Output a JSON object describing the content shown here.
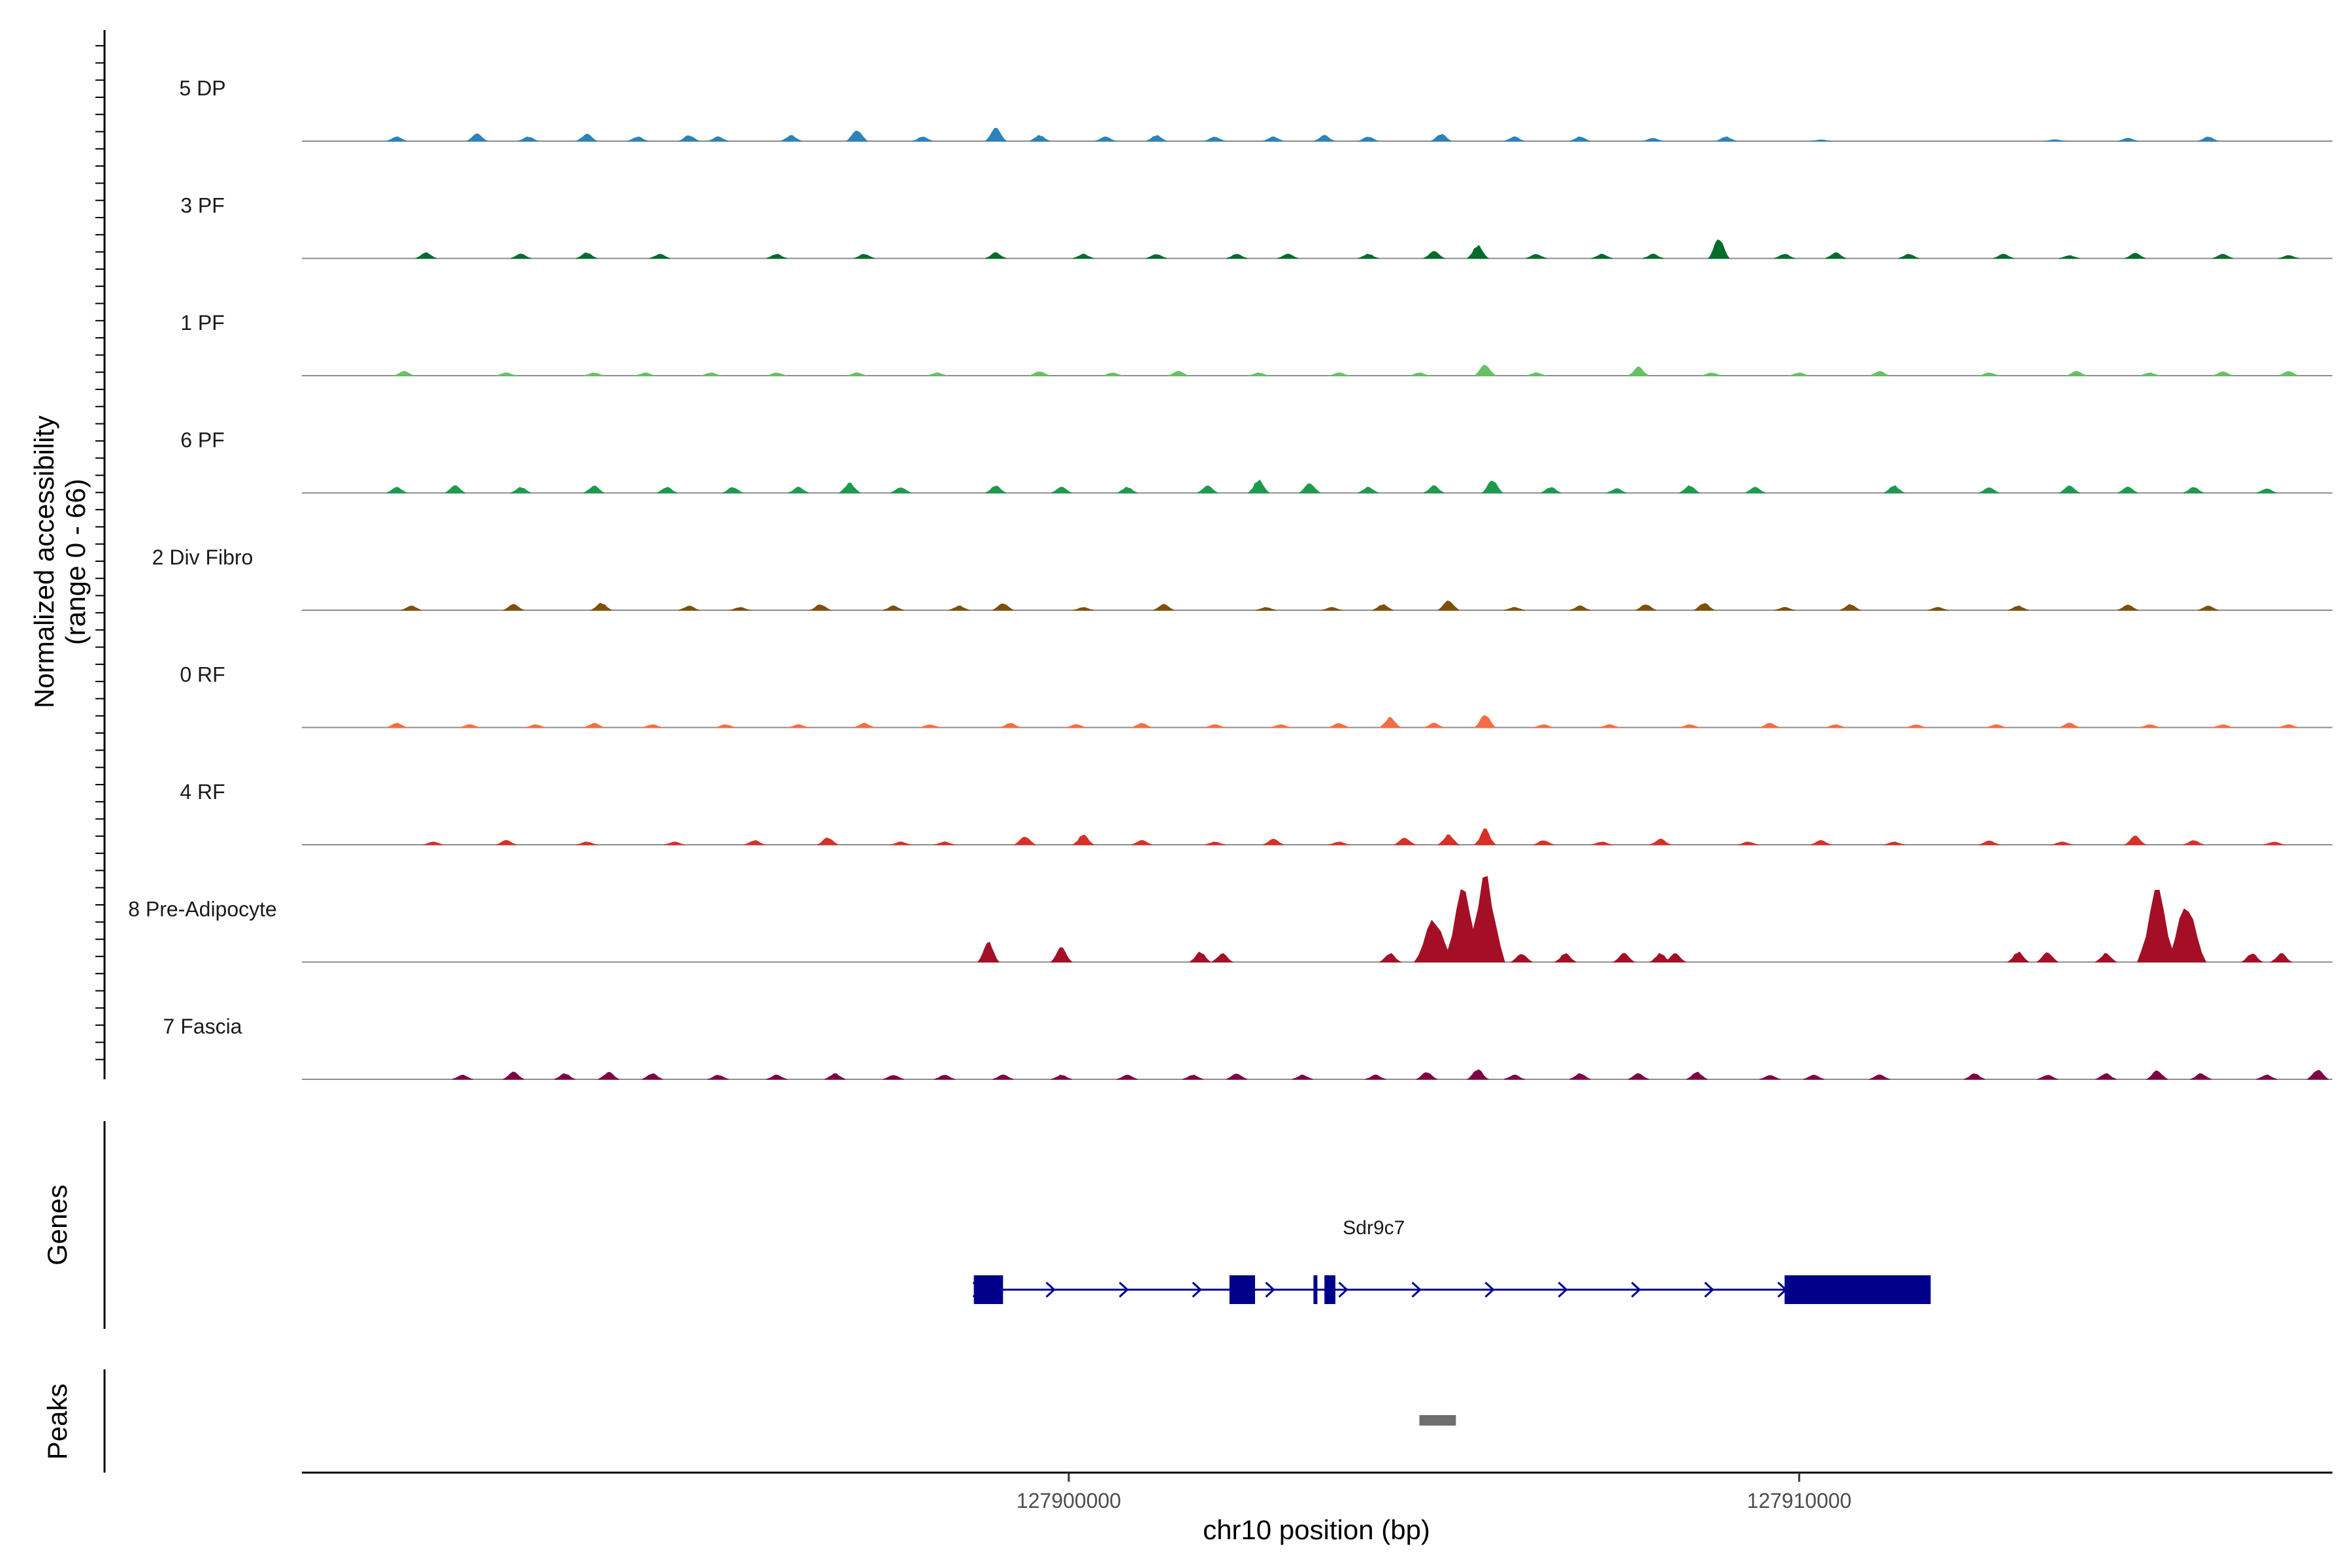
{
  "chart_data": {
    "type": "area",
    "region": {
      "chromosome": "chr10",
      "start": 127889500,
      "end": 127917300
    },
    "ylabel_line1": "Normalized accessibility",
    "ylabel_line2": "(range 0 - 66)",
    "y_range": [
      0,
      66
    ],
    "genes_label": "Genes",
    "peaks_label": "Peaks",
    "xlabel": "chr10 position (bp)",
    "x_ticks": [
      {
        "value": 127900000,
        "label": "127900000"
      },
      {
        "value": 127910000,
        "label": "127910000"
      }
    ],
    "series": [
      {
        "name": "5 DP",
        "color": "#2b83ba",
        "peaks": [
          [
            127890800,
            3
          ],
          [
            127891900,
            5
          ],
          [
            127892600,
            3
          ],
          [
            127893400,
            5
          ],
          [
            127894100,
            3
          ],
          [
            127894800,
            4
          ],
          [
            127895200,
            3
          ],
          [
            127896200,
            4
          ],
          [
            127897100,
            8
          ],
          [
            127898000,
            3
          ],
          [
            127899000,
            9
          ],
          [
            127899600,
            4
          ],
          [
            127900500,
            3
          ],
          [
            127901200,
            4
          ],
          [
            127902000,
            3
          ],
          [
            127902800,
            3
          ],
          [
            127903500,
            4
          ],
          [
            127904100,
            3
          ],
          [
            127905100,
            5
          ],
          [
            127906100,
            3
          ],
          [
            127907000,
            3
          ],
          [
            127908000,
            2
          ],
          [
            127909000,
            3
          ],
          [
            127910300,
            1
          ],
          [
            127913500,
            1
          ],
          [
            127914500,
            2
          ],
          [
            127915600,
            3
          ]
        ]
      },
      {
        "name": "3 PF",
        "color": "#006d2c",
        "peaks": [
          [
            127891200,
            4
          ],
          [
            127892500,
            3
          ],
          [
            127893400,
            4
          ],
          [
            127894400,
            3
          ],
          [
            127896000,
            3
          ],
          [
            127897200,
            3
          ],
          [
            127899000,
            4
          ],
          [
            127900200,
            3
          ],
          [
            127901200,
            3
          ],
          [
            127902300,
            3
          ],
          [
            127903000,
            3
          ],
          [
            127904100,
            3
          ],
          [
            127905000,
            5
          ],
          [
            127905600,
            9
          ],
          [
            127906400,
            3
          ],
          [
            127907300,
            3
          ],
          [
            127908000,
            3
          ],
          [
            127908900,
            14
          ],
          [
            127909800,
            3
          ],
          [
            127910500,
            4
          ],
          [
            127911500,
            3
          ],
          [
            127912800,
            3
          ],
          [
            127913700,
            2
          ],
          [
            127914600,
            4
          ],
          [
            127915800,
            3
          ],
          [
            127916700,
            2
          ]
        ]
      },
      {
        "name": "1 PF",
        "color": "#66c164",
        "peaks": [
          [
            127890900,
            3
          ],
          [
            127892300,
            2
          ],
          [
            127893500,
            2
          ],
          [
            127894200,
            2
          ],
          [
            127895100,
            2
          ],
          [
            127896000,
            2
          ],
          [
            127897100,
            2
          ],
          [
            127898200,
            2
          ],
          [
            127899600,
            3
          ],
          [
            127900600,
            2
          ],
          [
            127901500,
            3
          ],
          [
            127902600,
            2
          ],
          [
            127903700,
            2
          ],
          [
            127904800,
            2
          ],
          [
            127905700,
            8
          ],
          [
            127906400,
            2
          ],
          [
            127907800,
            6
          ],
          [
            127908800,
            2
          ],
          [
            127910000,
            2
          ],
          [
            127911100,
            3
          ],
          [
            127912600,
            2
          ],
          [
            127913800,
            3
          ],
          [
            127914800,
            2
          ],
          [
            127915800,
            3
          ],
          [
            127916700,
            3
          ]
        ]
      },
      {
        "name": "6 PF",
        "color": "#1e9a4f",
        "peaks": [
          [
            127890800,
            4
          ],
          [
            127891600,
            5
          ],
          [
            127892500,
            4
          ],
          [
            127893500,
            5
          ],
          [
            127894500,
            4
          ],
          [
            127895400,
            4
          ],
          [
            127896300,
            4
          ],
          [
            127897000,
            7
          ],
          [
            127897700,
            4
          ],
          [
            127899000,
            5
          ],
          [
            127899900,
            4
          ],
          [
            127900800,
            4
          ],
          [
            127901900,
            5
          ],
          [
            127902600,
            9
          ],
          [
            127903300,
            7
          ],
          [
            127904100,
            4
          ],
          [
            127905000,
            5
          ],
          [
            127905800,
            9
          ],
          [
            127906600,
            4
          ],
          [
            127907500,
            3
          ],
          [
            127908500,
            5
          ],
          [
            127909400,
            4
          ],
          [
            127911300,
            5
          ],
          [
            127912600,
            4
          ],
          [
            127913700,
            5
          ],
          [
            127914500,
            4
          ],
          [
            127915400,
            4
          ],
          [
            127916400,
            3
          ]
        ]
      },
      {
        "name": "2 Div Fibro",
        "color": "#7f4f08",
        "peaks": [
          [
            127891000,
            3
          ],
          [
            127892400,
            4
          ],
          [
            127893600,
            5
          ],
          [
            127894800,
            3
          ],
          [
            127895500,
            2
          ],
          [
            127896600,
            4
          ],
          [
            127897600,
            3
          ],
          [
            127898500,
            3
          ],
          [
            127899100,
            5
          ],
          [
            127900200,
            2
          ],
          [
            127901300,
            4
          ],
          [
            127902700,
            2
          ],
          [
            127903600,
            2
          ],
          [
            127904300,
            4
          ],
          [
            127905200,
            7
          ],
          [
            127906100,
            2
          ],
          [
            127907000,
            3
          ],
          [
            127907900,
            4
          ],
          [
            127908700,
            5
          ],
          [
            127909800,
            2
          ],
          [
            127910700,
            4
          ],
          [
            127911900,
            2
          ],
          [
            127913000,
            3
          ],
          [
            127914500,
            4
          ],
          [
            127915600,
            3
          ]
        ]
      },
      {
        "name": "0 RF",
        "color": "#f46d43",
        "peaks": [
          [
            127890800,
            3
          ],
          [
            127891800,
            2
          ],
          [
            127892700,
            2
          ],
          [
            127893500,
            3
          ],
          [
            127894300,
            2
          ],
          [
            127895300,
            2
          ],
          [
            127896300,
            2
          ],
          [
            127897200,
            3
          ],
          [
            127898100,
            2
          ],
          [
            127899200,
            3
          ],
          [
            127900100,
            2
          ],
          [
            127901000,
            3
          ],
          [
            127902000,
            2
          ],
          [
            127902900,
            2
          ],
          [
            127903700,
            3
          ],
          [
            127904400,
            7
          ],
          [
            127905000,
            3
          ],
          [
            127905700,
            9
          ],
          [
            127906500,
            2
          ],
          [
            127907400,
            2
          ],
          [
            127908500,
            2
          ],
          [
            127909600,
            3
          ],
          [
            127910500,
            2
          ],
          [
            127911600,
            2
          ],
          [
            127912700,
            2
          ],
          [
            127913700,
            3
          ],
          [
            127914800,
            2
          ],
          [
            127915800,
            2
          ],
          [
            127916700,
            2
          ]
        ]
      },
      {
        "name": "4 RF",
        "color": "#d73027",
        "peaks": [
          [
            127891300,
            2
          ],
          [
            127892300,
            3
          ],
          [
            127893400,
            2
          ],
          [
            127894600,
            2
          ],
          [
            127895700,
            3
          ],
          [
            127896700,
            5
          ],
          [
            127897700,
            2
          ],
          [
            127898300,
            2
          ],
          [
            127899400,
            6
          ],
          [
            127900200,
            7
          ],
          [
            127901000,
            3
          ],
          [
            127902000,
            2
          ],
          [
            127902800,
            4
          ],
          [
            127903700,
            2
          ],
          [
            127904600,
            5
          ],
          [
            127905200,
            7
          ],
          [
            127905700,
            11
          ],
          [
            127906500,
            3
          ],
          [
            127907300,
            2
          ],
          [
            127908100,
            4
          ],
          [
            127909300,
            2
          ],
          [
            127910300,
            3
          ],
          [
            127911300,
            2
          ],
          [
            127912600,
            3
          ],
          [
            127913600,
            2
          ],
          [
            127914600,
            6
          ],
          [
            127915400,
            3
          ],
          [
            127916500,
            2
          ]
        ]
      },
      {
        "name": "8 Pre-Adipocyte",
        "color": "#a50f26",
        "peaks": [
          [
            127898900,
            14
          ],
          [
            127899900,
            10
          ],
          [
            127901800,
            7
          ],
          [
            127902100,
            6
          ],
          [
            127904400,
            6
          ],
          [
            127905000,
            30
          ],
          [
            127905400,
            50
          ],
          [
            127905700,
            60
          ],
          [
            127906200,
            6
          ],
          [
            127906800,
            6
          ],
          [
            127907600,
            6
          ],
          [
            127908100,
            6
          ],
          [
            127908300,
            6
          ],
          [
            127913000,
            7
          ],
          [
            127913400,
            7
          ],
          [
            127914200,
            6
          ],
          [
            127914900,
            50
          ],
          [
            127915300,
            40
          ],
          [
            127916200,
            6
          ],
          [
            127916600,
            6
          ]
        ]
      },
      {
        "name": "7 Fascia",
        "color": "#7f0044",
        "peaks": [
          [
            127891700,
            3
          ],
          [
            127892400,
            5
          ],
          [
            127893100,
            4
          ],
          [
            127893700,
            5
          ],
          [
            127894300,
            4
          ],
          [
            127895200,
            3
          ],
          [
            127896000,
            3
          ],
          [
            127896800,
            4
          ],
          [
            127897600,
            3
          ],
          [
            127898300,
            3
          ],
          [
            127899100,
            3
          ],
          [
            127899900,
            3
          ],
          [
            127900800,
            3
          ],
          [
            127901700,
            3
          ],
          [
            127902300,
            4
          ],
          [
            127903200,
            3
          ],
          [
            127904200,
            3
          ],
          [
            127904900,
            5
          ],
          [
            127905600,
            7
          ],
          [
            127906100,
            3
          ],
          [
            127907000,
            4
          ],
          [
            127907800,
            4
          ],
          [
            127908600,
            5
          ],
          [
            127909600,
            3
          ],
          [
            127910200,
            3
          ],
          [
            127911100,
            3
          ],
          [
            127912400,
            4
          ],
          [
            127913400,
            3
          ],
          [
            127914200,
            4
          ],
          [
            127914900,
            6
          ],
          [
            127915500,
            4
          ],
          [
            127916400,
            3
          ],
          [
            127917100,
            7
          ]
        ]
      }
    ],
    "gene": {
      "name": "Sdr9c7",
      "color": "#00008b",
      "strand": "+",
      "start": 127898700,
      "end": 127911800,
      "exons": [
        [
          127898700,
          127899100
        ],
        [
          127902200,
          127902550
        ],
        [
          127903350,
          127903400
        ],
        [
          127903500,
          127903650
        ],
        [
          127909800,
          127911800
        ]
      ]
    },
    "peak_regions": [
      [
        127904800,
        127905300
      ]
    ]
  }
}
